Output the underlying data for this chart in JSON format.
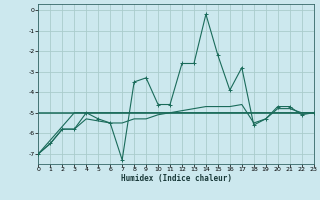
{
  "xlabel": "Humidex (Indice chaleur)",
  "bg_color": "#cce8ee",
  "grid_color": "#aacccc",
  "line_color": "#1a6b5a",
  "xlim": [
    0,
    23
  ],
  "ylim": [
    -7.5,
    0.3
  ],
  "yticks": [
    0,
    -1,
    -2,
    -3,
    -4,
    -5,
    -6,
    -7
  ],
  "xticks": [
    0,
    1,
    2,
    3,
    4,
    5,
    6,
    7,
    8,
    9,
    10,
    11,
    12,
    13,
    14,
    15,
    16,
    17,
    18,
    19,
    20,
    21,
    22,
    23
  ],
  "series_main": {
    "x": [
      0,
      1,
      2,
      3,
      4,
      5,
      6,
      7,
      8,
      9,
      10,
      11,
      12,
      13,
      14,
      15,
      16,
      17,
      18,
      19,
      20,
      21,
      22,
      23
    ],
    "y": [
      -7.0,
      -6.5,
      -5.8,
      -5.8,
      -5.0,
      -5.3,
      -5.5,
      -7.3,
      -3.5,
      -3.3,
      -4.6,
      -4.6,
      -2.6,
      -2.6,
      -0.2,
      -2.2,
      -3.9,
      -2.8,
      -5.6,
      -5.3,
      -4.7,
      -4.7,
      -5.1,
      -5.0
    ]
  },
  "series_smooth": {
    "x": [
      0,
      1,
      2,
      3,
      4,
      5,
      6,
      7,
      8,
      9,
      10,
      11,
      12,
      13,
      14,
      15,
      16,
      17,
      18,
      19,
      20,
      21,
      22,
      23
    ],
    "y": [
      -7.0,
      -6.5,
      -5.8,
      -5.8,
      -5.3,
      -5.4,
      -5.5,
      -5.5,
      -5.3,
      -5.3,
      -5.1,
      -5.0,
      -4.9,
      -4.8,
      -4.7,
      -4.7,
      -4.7,
      -4.6,
      -5.5,
      -5.3,
      -4.8,
      -4.8,
      -5.0,
      -5.0
    ]
  },
  "line_flat": {
    "x": [
      0,
      23
    ],
    "y": [
      -5.0,
      -5.0
    ]
  },
  "line_diag": {
    "x": [
      0,
      3,
      23
    ],
    "y": [
      -7.0,
      -5.0,
      -5.0
    ]
  }
}
